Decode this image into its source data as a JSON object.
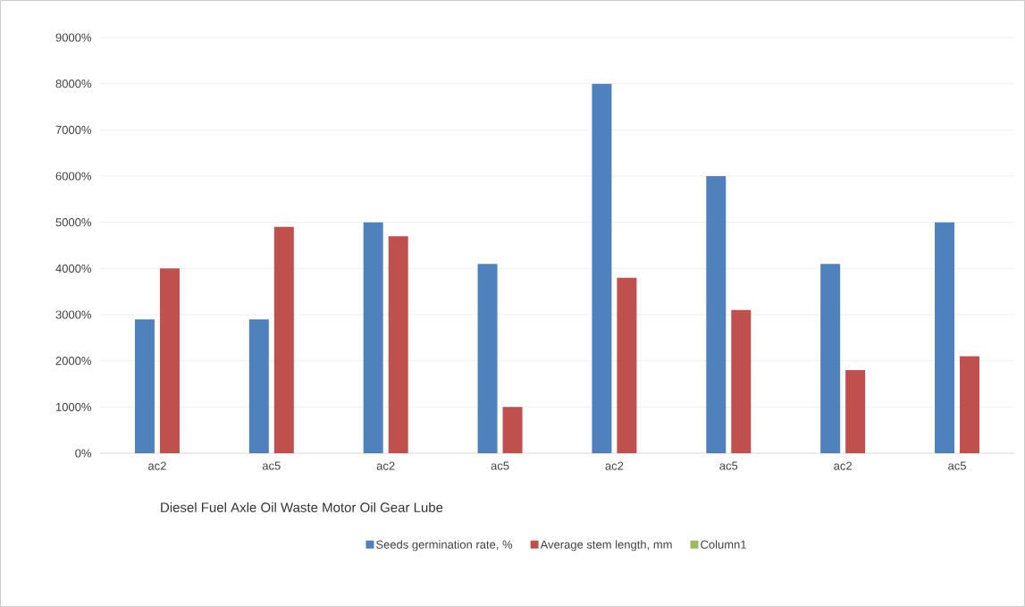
{
  "chart_data": {
    "type": "bar",
    "xlabel": "Diesel Fuel Axle Oil Waste Motor Oil Gear Lube",
    "categories": [
      "ac2",
      "ac5",
      "ac2",
      "ac5",
      "ac2",
      "ac5",
      "ac2",
      "ac5"
    ],
    "series": [
      {
        "name": "Seeds germination rate, %",
        "color": "#4f81bd",
        "values": [
          2900,
          2900,
          5000,
          4100,
          8000,
          6000,
          4100,
          5000
        ]
      },
      {
        "name": "Average stem length, mm",
        "color": "#c0504d",
        "values": [
          4000,
          4900,
          4700,
          1000,
          3800,
          3100,
          1800,
          2100
        ]
      },
      {
        "name": "Column1",
        "color": "#9bbb59",
        "values": [
          null,
          null,
          null,
          null,
          null,
          null,
          null,
          null
        ]
      }
    ],
    "ylim": [
      0,
      9000
    ],
    "yticks": [
      {
        "value": 0,
        "label": "0%"
      },
      {
        "value": 1000,
        "label": "1000%"
      },
      {
        "value": 2000,
        "label": "2000%"
      },
      {
        "value": 3000,
        "label": "3000%"
      },
      {
        "value": 4000,
        "label": "4000%"
      },
      {
        "value": 5000,
        "label": "5000%"
      },
      {
        "value": 6000,
        "label": "6000%"
      },
      {
        "value": 7000,
        "label": "7000%"
      },
      {
        "value": 8000,
        "label": "8000%"
      },
      {
        "value": 9000,
        "label": "9000%"
      }
    ],
    "grid": "y",
    "legend": "bottom"
  }
}
